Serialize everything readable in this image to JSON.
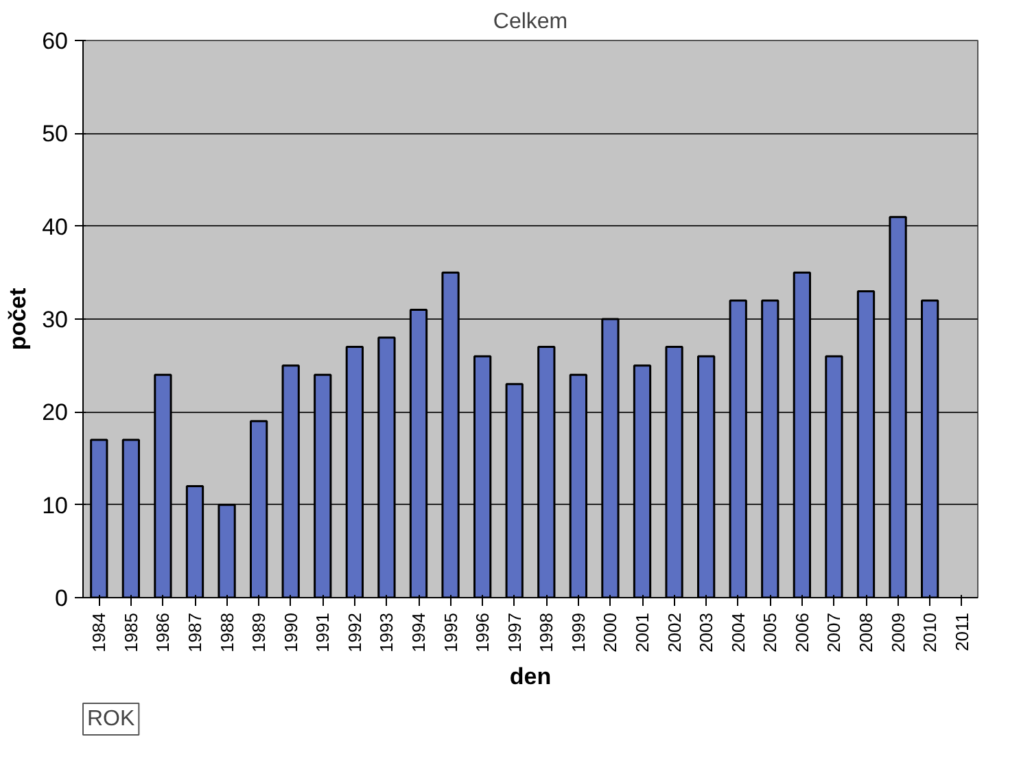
{
  "chart_data": {
    "type": "bar",
    "title": "Celkem",
    "xlabel": "den",
    "ylabel": "počet",
    "categories": [
      "1984",
      "1985",
      "1986",
      "1987",
      "1988",
      "1989",
      "1990",
      "1991",
      "1992",
      "1993",
      "1994",
      "1995",
      "1996",
      "1997",
      "1998",
      "1999",
      "2000",
      "2001",
      "2002",
      "2003",
      "2004",
      "2005",
      "2006",
      "2007",
      "2008",
      "2009",
      "2010",
      "2011"
    ],
    "values": [
      17,
      17,
      24,
      12,
      10,
      19,
      25,
      24,
      27,
      28,
      31,
      35,
      26,
      23,
      27,
      24,
      30,
      25,
      27,
      26,
      32,
      32,
      35,
      26,
      33,
      41,
      32,
      null
    ],
    "color": "#5c70c2",
    "ylim": [
      0,
      60
    ],
    "yticks": [
      0,
      10,
      20,
      30,
      40,
      50,
      60
    ],
    "grid": "y",
    "annotations": [
      "ROK"
    ]
  }
}
